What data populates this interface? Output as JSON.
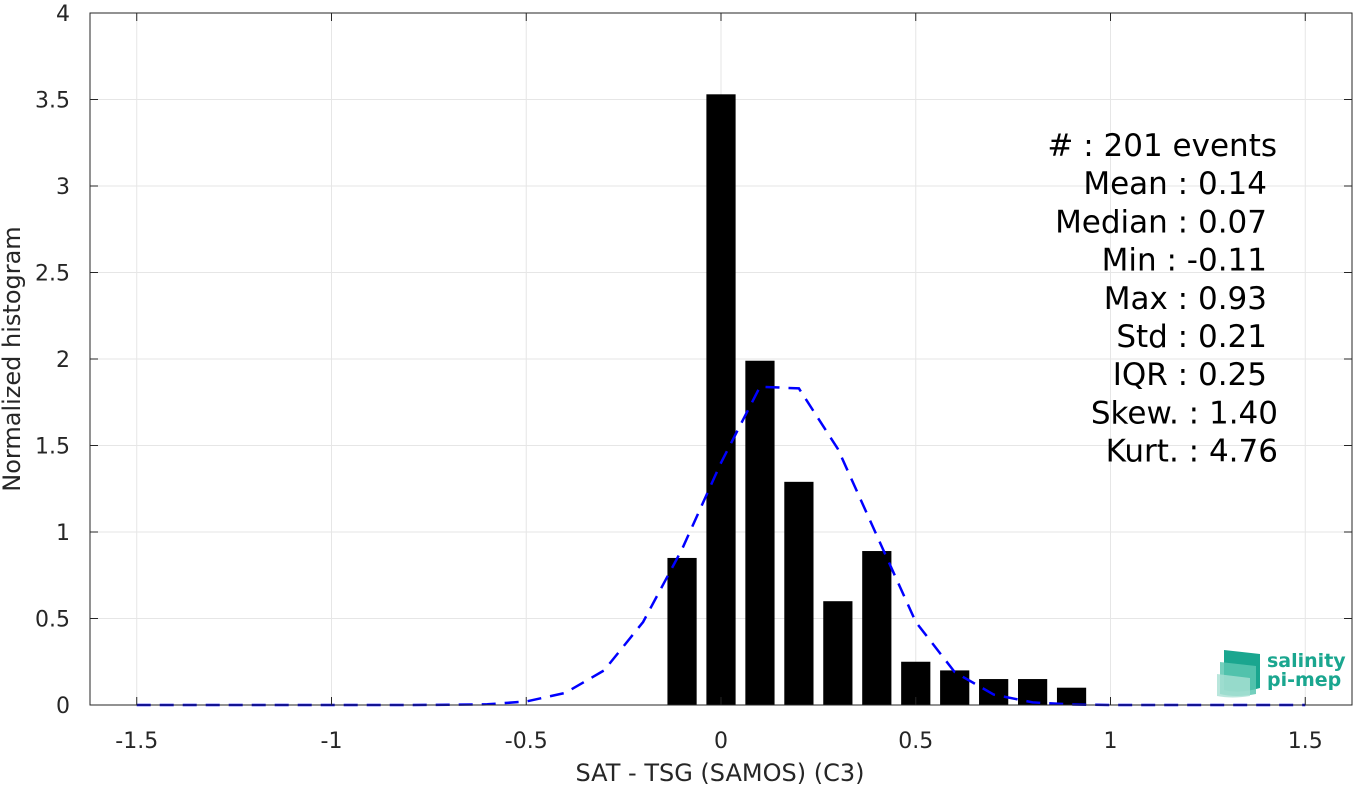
{
  "chart_data": {
    "type": "bar",
    "xlabel": "SAT - TSG (SAMOS) (C3)",
    "ylabel": "Normalized histogram",
    "xlim": [
      -1.62,
      1.62
    ],
    "ylim": [
      0,
      4
    ],
    "grid": true,
    "xticks": [
      "-1.5",
      "-1",
      "-0.5",
      "0",
      "0.5",
      "1",
      "1.5"
    ],
    "xtick_values": [
      -1.5,
      -1,
      -0.5,
      0,
      0.5,
      1,
      1.5
    ],
    "yticks": [
      "0",
      "0.5",
      "1",
      "1.5",
      "2",
      "2.5",
      "3",
      "3.5",
      "4"
    ],
    "ytick_values": [
      0,
      0.5,
      1,
      1.5,
      2,
      2.5,
      3,
      3.5,
      4
    ],
    "bar_color": "#000000",
    "bar_width": 0.075,
    "bars": [
      {
        "x": -0.1,
        "value": 0.85
      },
      {
        "x": 0.0,
        "value": 3.53
      },
      {
        "x": 0.1,
        "value": 1.99
      },
      {
        "x": 0.2,
        "value": 1.29
      },
      {
        "x": 0.3,
        "value": 0.6
      },
      {
        "x": 0.4,
        "value": 0.89
      },
      {
        "x": 0.5,
        "value": 0.25
      },
      {
        "x": 0.6,
        "value": 0.2
      },
      {
        "x": 0.7,
        "value": 0.15
      },
      {
        "x": 0.8,
        "value": 0.15
      },
      {
        "x": 0.9,
        "value": 0.1
      }
    ],
    "fit_curve": {
      "style": "dashed",
      "color": "#0000ff",
      "x": [
        -1.5,
        -1.4,
        -1.3,
        -1.2,
        -1.1,
        -1.0,
        -0.9,
        -0.8,
        -0.7,
        -0.6,
        -0.5,
        -0.4,
        -0.3,
        -0.2,
        -0.1,
        0.0,
        0.1,
        0.2,
        0.3,
        0.4,
        0.5,
        0.6,
        0.7,
        0.8,
        0.9,
        1.0,
        1.1,
        1.2,
        1.3,
        1.4,
        1.5
      ],
      "y": [
        0,
        0,
        0,
        0,
        0,
        0,
        0,
        0,
        0.001,
        0.004,
        0.02,
        0.07,
        0.2,
        0.48,
        0.9,
        1.4,
        1.84,
        1.83,
        1.48,
        0.98,
        0.48,
        0.19,
        0.06,
        0.015,
        0.003,
        0,
        0,
        0,
        0,
        0,
        0
      ]
    },
    "stats": [
      {
        "label": "#  : 201 events"
      },
      {
        "label": "Mean : 0.14"
      },
      {
        "label": "Median : 0.07"
      },
      {
        "label": "Min : -0.11"
      },
      {
        "label": "Max : 0.93"
      },
      {
        "label": "Std : 0.21"
      },
      {
        "label": "IQR : 0.25"
      },
      {
        "label": "Skew. : 1.40"
      },
      {
        "label": "Kurt. : 4.76"
      }
    ]
  },
  "logo": {
    "line1": "salinity",
    "line2": "pi-mep"
  },
  "colors": {
    "grid": "#e6e6e6",
    "axis": "#262626",
    "logo": "#1aa68f"
  }
}
